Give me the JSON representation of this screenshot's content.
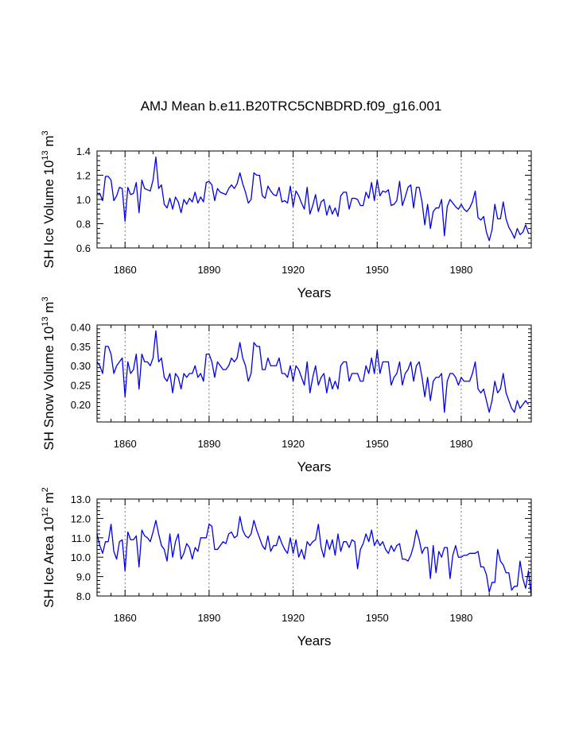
{
  "title": "AMJ Mean b.e11.B20TRC5CNBDRD.f09_g16.001",
  "colors": {
    "line": "#0000ee",
    "axis": "#000000",
    "grid": "#555555",
    "background": "#ffffff"
  },
  "chart_data": [
    {
      "type": "line",
      "ylabel": "SH Ice Volume",
      "units": {
        "base": "10",
        "exp": "13",
        "unit": "m",
        "unit_exp": "3"
      },
      "xlabel": "Years",
      "xlim": [
        1850,
        2005
      ],
      "ylim": [
        0.6,
        1.4
      ],
      "yticks": [
        "0.6",
        "0.8",
        "1.0",
        "1.2",
        "1.4"
      ],
      "xticks": [
        "1860",
        "1890",
        "1920",
        "1950",
        "1980"
      ],
      "grid": "vertical dashed at x ticks",
      "x_start": 1850,
      "values": [
        1.05,
        1.05,
        0.99,
        1.19,
        1.19,
        1.16,
        0.99,
        1.03,
        1.1,
        1.09,
        0.82,
        1.1,
        1.04,
        1.05,
        1.14,
        0.89,
        1.16,
        1.09,
        1.08,
        1.07,
        1.16,
        1.35,
        1.09,
        1.12,
        0.96,
        0.93,
        1.01,
        0.92,
        1.02,
        0.98,
        0.89,
        1.0,
        0.96,
        1.01,
        0.98,
        1.06,
        0.97,
        1.02,
        0.98,
        1.14,
        1.15,
        1.12,
        0.99,
        1.09,
        1.06,
        1.05,
        1.04,
        1.09,
        1.12,
        1.09,
        1.13,
        1.22,
        1.13,
        1.06,
        0.97,
        1.0,
        1.22,
        1.2,
        1.2,
        1.03,
        1.01,
        1.11,
        1.07,
        1.04,
        1.03,
        1.1,
        0.98,
        0.99,
        0.97,
        1.11,
        0.94,
        1.07,
        1.03,
        0.97,
        0.92,
        1.1,
        0.88,
        0.95,
        1.04,
        0.9,
        0.98,
        1.0,
        0.87,
        0.95,
        0.88,
        0.93,
        0.86,
        1.03,
        1.06,
        1.06,
        0.92,
        1.01,
        1.01,
        1.0,
        0.95,
        0.95,
        1.06,
        1.01,
        1.14,
        0.99,
        1.16,
        1.03,
        1.07,
        1.06,
        1.08,
        0.95,
        0.96,
        0.99,
        1.15,
        0.95,
        1.02,
        1.1,
        1.12,
        0.93,
        1.1,
        1.1,
        0.98,
        0.79,
        0.96,
        0.76,
        0.9,
        0.93,
        0.93,
        1.0,
        0.7,
        0.94,
        1.0,
        0.97,
        0.94,
        0.92,
        0.96,
        0.92,
        0.9,
        0.93,
        0.98,
        1.07,
        0.85,
        0.83,
        0.86,
        0.73,
        0.66,
        0.75,
        0.96,
        0.84,
        0.84,
        0.98,
        0.84,
        0.77,
        0.73,
        0.68,
        0.76,
        0.71,
        0.73,
        0.79,
        0.72
      ]
    },
    {
      "type": "line",
      "ylabel": "SH Snow Volume",
      "units": {
        "base": "10",
        "exp": "13",
        "unit": "m",
        "unit_exp": "3"
      },
      "xlabel": "Years",
      "xlim": [
        1850,
        2005
      ],
      "ylim": [
        0.155,
        0.405
      ],
      "yticks": [
        "0.20",
        "0.25",
        "0.30",
        "0.35",
        "0.40"
      ],
      "xticks": [
        "1860",
        "1890",
        "1920",
        "1950",
        "1980"
      ],
      "grid": "vertical dashed at x ticks",
      "x_start": 1850,
      "values": [
        0.31,
        0.3,
        0.28,
        0.35,
        0.35,
        0.33,
        0.28,
        0.3,
        0.31,
        0.32,
        0.22,
        0.31,
        0.28,
        0.29,
        0.33,
        0.24,
        0.33,
        0.31,
        0.31,
        0.3,
        0.32,
        0.39,
        0.31,
        0.32,
        0.27,
        0.26,
        0.28,
        0.23,
        0.28,
        0.27,
        0.24,
        0.28,
        0.27,
        0.28,
        0.28,
        0.3,
        0.27,
        0.28,
        0.26,
        0.33,
        0.33,
        0.31,
        0.27,
        0.31,
        0.3,
        0.29,
        0.29,
        0.3,
        0.32,
        0.31,
        0.32,
        0.36,
        0.32,
        0.3,
        0.26,
        0.28,
        0.36,
        0.35,
        0.35,
        0.29,
        0.29,
        0.32,
        0.3,
        0.3,
        0.3,
        0.32,
        0.28,
        0.28,
        0.27,
        0.3,
        0.26,
        0.3,
        0.29,
        0.27,
        0.25,
        0.31,
        0.23,
        0.27,
        0.3,
        0.25,
        0.27,
        0.28,
        0.23,
        0.27,
        0.24,
        0.26,
        0.24,
        0.3,
        0.31,
        0.31,
        0.26,
        0.28,
        0.28,
        0.28,
        0.26,
        0.26,
        0.3,
        0.28,
        0.32,
        0.28,
        0.34,
        0.28,
        0.31,
        0.31,
        0.31,
        0.25,
        0.27,
        0.28,
        0.31,
        0.25,
        0.28,
        0.29,
        0.31,
        0.26,
        0.3,
        0.31,
        0.27,
        0.22,
        0.27,
        0.21,
        0.26,
        0.27,
        0.27,
        0.28,
        0.18,
        0.26,
        0.28,
        0.28,
        0.27,
        0.25,
        0.27,
        0.26,
        0.26,
        0.26,
        0.28,
        0.31,
        0.24,
        0.23,
        0.24,
        0.21,
        0.18,
        0.21,
        0.26,
        0.23,
        0.24,
        0.28,
        0.23,
        0.21,
        0.19,
        0.18,
        0.21,
        0.19,
        0.2,
        0.21,
        0.2
      ]
    },
    {
      "type": "line",
      "ylabel": "SH Ice Area",
      "units": {
        "base": "10",
        "exp": "12",
        "unit": "m",
        "unit_exp": "2"
      },
      "xlabel": "Years",
      "xlim": [
        1850,
        2005
      ],
      "ylim": [
        8.0,
        13.0
      ],
      "yticks": [
        "8.0",
        "9.0",
        "10.0",
        "11.0",
        "12.0",
        "13.0"
      ],
      "xticks": [
        "1860",
        "1890",
        "1920",
        "1950",
        "1980"
      ],
      "grid": "vertical dashed at x ticks",
      "x_start": 1850,
      "values": [
        11.2,
        10.6,
        10.2,
        10.8,
        10.8,
        11.7,
        10.3,
        9.9,
        10.8,
        10.9,
        9.3,
        11.3,
        10.9,
        10.9,
        11.1,
        9.5,
        11.4,
        11.1,
        11.0,
        10.8,
        11.3,
        11.9,
        11.2,
        10.6,
        10.4,
        9.8,
        11.2,
        10.0,
        10.8,
        11.2,
        9.9,
        10.2,
        10.7,
        10.5,
        9.9,
        10.5,
        10.3,
        11.0,
        11.0,
        11.0,
        11.7,
        11.6,
        10.4,
        10.4,
        10.6,
        10.8,
        10.7,
        11.2,
        11.3,
        11.0,
        11.1,
        12.1,
        11.4,
        11.1,
        11.0,
        11.2,
        11.9,
        11.4,
        11.0,
        10.6,
        10.4,
        11.1,
        10.3,
        10.6,
        10.6,
        11.1,
        10.7,
        10.4,
        10.2,
        11.0,
        10.2,
        10.9,
        10.0,
        10.4,
        9.9,
        10.8,
        10.6,
        10.8,
        10.9,
        11.7,
        10.5,
        10.0,
        10.9,
        10.4,
        10.9,
        10.1,
        11.2,
        10.3,
        10.8,
        10.8,
        10.5,
        10.9,
        10.8,
        9.4,
        10.4,
        10.7,
        11.2,
        10.8,
        11.4,
        10.6,
        10.9,
        10.6,
        10.8,
        10.4,
        10.2,
        10.6,
        10.3,
        10.6,
        10.7,
        9.9,
        9.9,
        9.8,
        10.1,
        10.6,
        11.4,
        10.9,
        10.2,
        10.5,
        10.5,
        8.9,
        10.6,
        9.2,
        10.3,
        10.0,
        10.5,
        10.5,
        8.9,
        10.1,
        10.6,
        10.0,
        10.0,
        10.1,
        10.1,
        10.2,
        10.2,
        10.2,
        10.3,
        9.5,
        9.5,
        9.1,
        8.2,
        8.7,
        8.7,
        10.4,
        9.8,
        9.6,
        9.2,
        9.2,
        8.3,
        8.5,
        8.5,
        9.8,
        8.9,
        8.4,
        9.3,
        8.0
      ]
    }
  ]
}
